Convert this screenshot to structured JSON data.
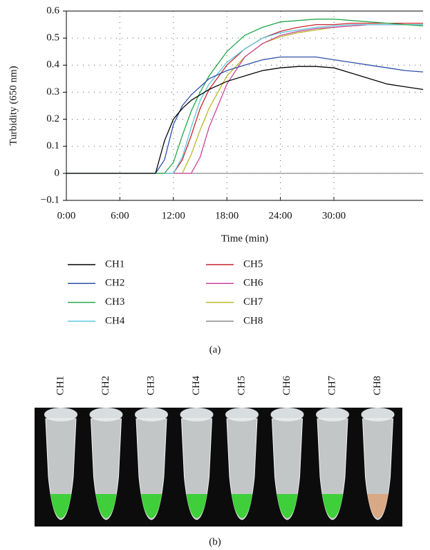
{
  "chart_data": {
    "type": "line",
    "y_label": "Turbidity (650 nm)",
    "x_label": "Time (min)",
    "caption": "(a)",
    "x": [
      0,
      8,
      10,
      11,
      12,
      13,
      14,
      15,
      16,
      18,
      20,
      22,
      24,
      26,
      28,
      30,
      32,
      34,
      36,
      38,
      40
    ],
    "series": [
      {
        "name": "CH1",
        "color": "#000000",
        "values": [
          0,
          0,
          0,
          0.12,
          0.2,
          0.24,
          0.27,
          0.29,
          0.31,
          0.34,
          0.36,
          0.38,
          0.39,
          0.395,
          0.395,
          0.39,
          0.37,
          0.35,
          0.33,
          0.32,
          0.31
        ]
      },
      {
        "name": "CH2",
        "color": "#2b4ea8",
        "values": [
          0,
          0,
          0,
          0.05,
          0.18,
          0.25,
          0.29,
          0.32,
          0.35,
          0.38,
          0.4,
          0.42,
          0.43,
          0.43,
          0.43,
          0.42,
          0.41,
          0.4,
          0.39,
          0.38,
          0.375
        ]
      },
      {
        "name": "CH3",
        "color": "#22a84a",
        "values": [
          0,
          0,
          0,
          0,
          0.04,
          0.14,
          0.23,
          0.3,
          0.36,
          0.45,
          0.51,
          0.54,
          0.56,
          0.565,
          0.57,
          0.57,
          0.565,
          0.56,
          0.555,
          0.55,
          0.545
        ]
      },
      {
        "name": "CH4",
        "color": "#5bc8e0",
        "values": [
          0,
          0,
          0,
          0,
          0,
          0.06,
          0.17,
          0.27,
          0.33,
          0.41,
          0.46,
          0.5,
          0.52,
          0.53,
          0.54,
          0.545,
          0.55,
          0.55,
          0.55,
          0.55,
          0.55
        ]
      },
      {
        "name": "CH5",
        "color": "#c8242c",
        "values": [
          0,
          0,
          0,
          0,
          0,
          0.05,
          0.14,
          0.24,
          0.31,
          0.4,
          0.46,
          0.5,
          0.525,
          0.54,
          0.55,
          0.55,
          0.555,
          0.555,
          0.555,
          0.555,
          0.555
        ]
      },
      {
        "name": "CH6",
        "color": "#c8409a",
        "values": [
          0,
          0,
          0,
          0,
          0,
          0,
          0,
          0.06,
          0.17,
          0.33,
          0.43,
          0.48,
          0.51,
          0.525,
          0.535,
          0.54,
          0.545,
          0.55,
          0.55,
          0.55,
          0.55
        ]
      },
      {
        "name": "CH7",
        "color": "#b8b824",
        "values": [
          0,
          0,
          0,
          0,
          0,
          0,
          0.07,
          0.16,
          0.24,
          0.36,
          0.43,
          0.48,
          0.505,
          0.52,
          0.53,
          0.54,
          0.545,
          0.55,
          0.55,
          0.55,
          0.55
        ]
      },
      {
        "name": "CH8",
        "color": "#888888",
        "values": [
          0,
          0,
          0,
          0,
          0,
          0,
          0,
          0,
          0,
          0,
          0,
          0,
          0,
          0,
          0,
          0,
          0,
          0,
          0,
          0,
          0
        ]
      }
    ],
    "xlim": [
      0,
      40
    ],
    "xticks": [
      {
        "value": 0,
        "label": "0:00"
      },
      {
        "value": 6,
        "label": "6:00"
      },
      {
        "value": 12,
        "label": "12:00"
      },
      {
        "value": 18,
        "label": "18:00"
      },
      {
        "value": 24,
        "label": "24:00"
      },
      {
        "value": 30,
        "label": "30:00"
      }
    ],
    "ylim": [
      -0.1,
      0.6
    ],
    "yticks": [
      {
        "value": -0.1,
        "label": "−0.1"
      },
      0,
      0.1,
      0.2,
      0.3,
      0.4,
      0.5,
      0.6
    ],
    "grid": true
  },
  "photo": {
    "labels": [
      "CH1",
      "CH2",
      "CH3",
      "CH4",
      "CH5",
      "CH6",
      "CH7",
      "CH8"
    ],
    "caption": "(b)"
  }
}
